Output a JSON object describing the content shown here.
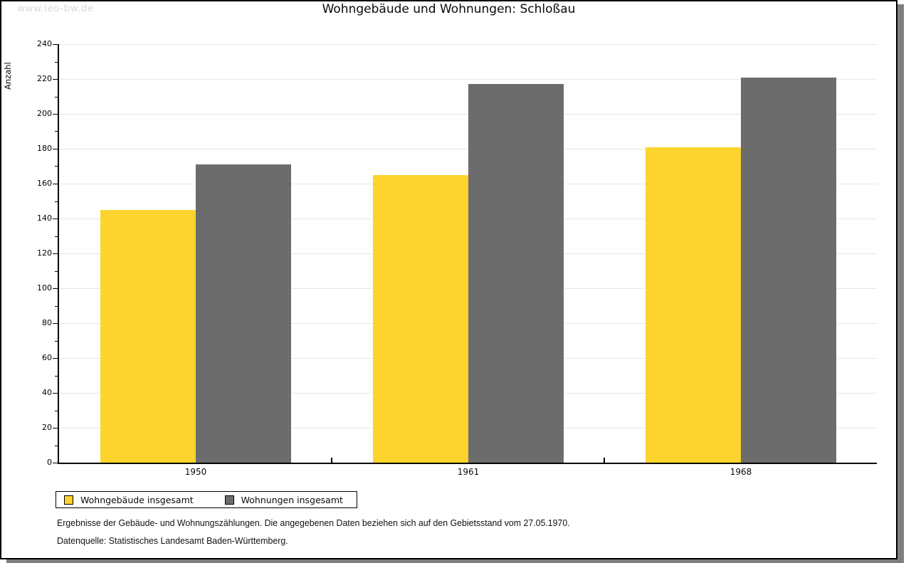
{
  "watermark": "www.leo-bw.de",
  "title": "Wohngebäude und Wohnungen: Schloßau",
  "chart_data": {
    "type": "bar",
    "categories": [
      "1950",
      "1961",
      "1968"
    ],
    "series": [
      {
        "name": "Wohngebäude insgesamt",
        "color": "#fcd42d",
        "values": [
          145,
          165,
          181
        ]
      },
      {
        "name": "Wohnungen insgesamt",
        "color": "#6c6c6c",
        "values": [
          171,
          217,
          221
        ]
      }
    ],
    "title": "Wohngebäude und Wohnungen: Schloßau",
    "xlabel": "",
    "ylabel": "Anzahl",
    "ylim": [
      0,
      240
    ],
    "yticks": [
      0,
      20,
      40,
      60,
      80,
      100,
      120,
      140,
      160,
      180,
      200,
      220,
      240
    ],
    "yminor_step": 10,
    "grid": true,
    "gridline_color": "#e7e7e7",
    "legend_position": "bottom-left"
  },
  "footnotes": {
    "line1": "Ergebnisse der Gebäude- und Wohnungszählungen. Die angegebenen Daten beziehen sich auf den Gebietsstand vom 27.05.1970.",
    "line2": "Datenquelle: Statistisches Landesamt Baden-Württemberg."
  }
}
